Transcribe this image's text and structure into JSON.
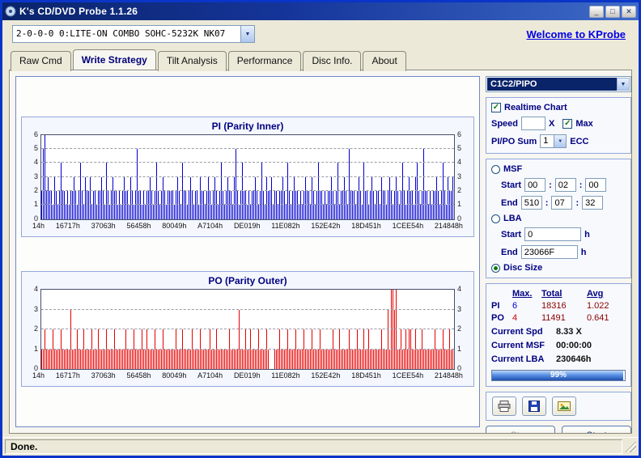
{
  "window": {
    "title": "K's CD/DVD Probe 1.1.26"
  },
  "device_bar": {
    "device": "2-0-0-0 0:LITE-ON COMBO SOHC-5232K NK07",
    "welcome_link": "Welcome to KProbe"
  },
  "tabs": [
    {
      "label": "Raw Cmd",
      "active": false
    },
    {
      "label": "Write Strategy",
      "active": true
    },
    {
      "label": "Tilt Analysis",
      "active": false
    },
    {
      "label": "Performance",
      "active": false
    },
    {
      "label": "Disc Info.",
      "active": false
    },
    {
      "label": "About",
      "active": false
    }
  ],
  "side": {
    "mode_combo": "C1C2/PIPO",
    "realtime_chart": {
      "label": "Realtime Chart",
      "checked": true
    },
    "speed": {
      "label": "Speed",
      "value": "",
      "unit": "X",
      "max_label": "Max",
      "max_checked": true
    },
    "pipo_sum": {
      "label": "PI/PO Sum",
      "value": "1",
      "suffix": "ECC"
    },
    "msf": {
      "label": "MSF",
      "start_label": "Start",
      "end_label": "End",
      "start": [
        "00",
        "02",
        "00"
      ],
      "end": [
        "510",
        "07",
        "32"
      ]
    },
    "lba": {
      "label": "LBA",
      "start_label": "Start",
      "end_label": "End",
      "start": "0",
      "end": "23066F",
      "unit": "h"
    },
    "disc_size": {
      "label": "Disc Size"
    },
    "selected_range": "disc-size",
    "stats": {
      "headers": [
        "Max.",
        "Total",
        "Avg"
      ],
      "rows": [
        {
          "name": "PI",
          "max": "6",
          "total": "18316",
          "avg": "1.022"
        },
        {
          "name": "PO",
          "max": "4",
          "total": "11491",
          "avg": "0.641"
        }
      ]
    },
    "current": {
      "spd_label": "Current Spd",
      "spd_value": "8.33  X",
      "msf_label": "Current MSF",
      "msf_value": "00:00:00",
      "lba_label": "Current LBA",
      "lba_value": "230646h"
    },
    "progress": {
      "percent": 99,
      "text": "99%"
    },
    "actions": {
      "stop": "Stop",
      "start": "Start"
    }
  },
  "status_bar": {
    "text": "Done."
  },
  "chart_data": [
    {
      "type": "bar",
      "title": "PI (Parity Inner)",
      "color": "#0000D0",
      "ylim": [
        0,
        6
      ],
      "grid": "dashed horizontal at each integer",
      "legend": "none",
      "x_labels": [
        "14h",
        "16717h",
        "37063h",
        "56458h",
        "80049h",
        "A7104h",
        "DE019h",
        "11E082h",
        "152E42h",
        "18D451h",
        "1CEE54h",
        "214848h"
      ],
      "bars": "2562322132124221212232124213223122122321421232212123221321252212122321242123212222123214221232122132212321232124212322135212422121223212421322312212232142123221212322132124221212232124122321522212321422123212213221232123212421232213421252212122321242132231"
    },
    {
      "type": "bar",
      "title": "PO (Parity Outer)",
      "color": "#E80000",
      "ylim": [
        0,
        4
      ],
      "grid": "dashed horizontal at each integer",
      "legend": "none",
      "x_labels": [
        "14h",
        "16717h",
        "37063h",
        "56458h",
        "80049h",
        "A7104h",
        "DE019h",
        "11E082h",
        "152E42h",
        "18D451h",
        "1CEE54h",
        "214848h"
      ],
      "bars": "1121111211112111113111211121111211121111211112111111211112111121121111211112111111121112111112111121111121112111111121111131112112111121111210001112111121111211112111121111211111112111211111211112111211211111112111314434112112122112111211111112111121112111"
    }
  ]
}
